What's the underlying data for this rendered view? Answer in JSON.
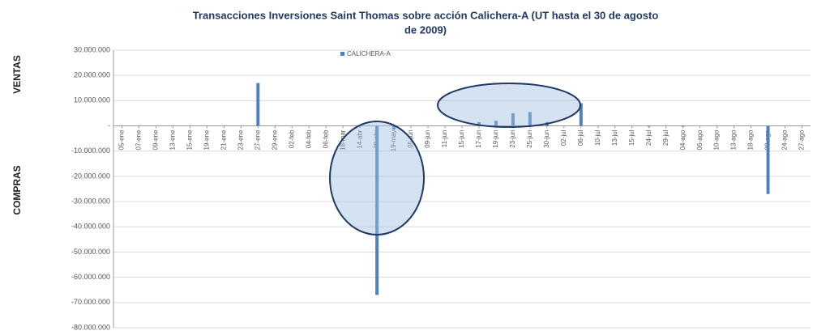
{
  "chart_data": {
    "type": "bar",
    "title": [
      "Transacciones Inversiones Saint Thomas  sobre acción Calichera-A (UT hasta el 30 de agosto",
      "de 2009)"
    ],
    "y_label_top": "VENTAS",
    "y_label_bottom": "COMPRAS",
    "categories": [
      "05-ene",
      "07-ene",
      "09-ene",
      "13-ene",
      "15-ene",
      "19-ene",
      "21-ene",
      "23-ene",
      "27-ene",
      "29-ene",
      "02-feb",
      "04-feb",
      "06-feb",
      "18-mar",
      "14-abr",
      "30-abr",
      "19-may",
      "05-jun",
      "09-jun",
      "11-jun",
      "15-jun",
      "17-jun",
      "19-jun",
      "23-jun",
      "25-jun",
      "30-jun",
      "02-jul",
      "06-jul",
      "10-jul",
      "13-jul",
      "15-jul",
      "24-jul",
      "29-jul",
      "04-ago",
      "06-ago",
      "10-ago",
      "13-ago",
      "18-ago",
      "20-ago",
      "24-ago",
      "27-ago"
    ],
    "series": [
      {
        "name": "CALICHERA-A",
        "color": "#4f81bd",
        "values": [
          0,
          0,
          0,
          0,
          0,
          0,
          0,
          0,
          17000000,
          0,
          0,
          0,
          0,
          0,
          0,
          -67000000,
          -1500000,
          0,
          0,
          0,
          0,
          1500000,
          2000000,
          5000000,
          5500000,
          1500000,
          0,
          9000000,
          0,
          0,
          0,
          -300000,
          0,
          -300000,
          0,
          0,
          0,
          0,
          -27000000,
          0,
          0
        ]
      }
    ],
    "ylim": [
      -80000000,
      30000000
    ],
    "yticks": [
      {
        "value": -80000000,
        "label": "-80.000.000"
      },
      {
        "value": -70000000,
        "label": "-70.000.000"
      },
      {
        "value": -60000000,
        "label": "-60.000.000"
      },
      {
        "value": -50000000,
        "label": "-50.000.000"
      },
      {
        "value": -40000000,
        "label": "-40.000.000"
      },
      {
        "value": -30000000,
        "label": "-30.000.000"
      },
      {
        "value": -20000000,
        "label": "-20.000.000"
      },
      {
        "value": -10000000,
        "label": "-10.000.000"
      },
      {
        "value": 0,
        "label": "-"
      },
      {
        "value": 10000000,
        "label": "10.000.000"
      },
      {
        "value": 20000000,
        "label": "20.000.000"
      },
      {
        "value": 30000000,
        "label": "30.000.000"
      }
    ],
    "grid": true
  }
}
